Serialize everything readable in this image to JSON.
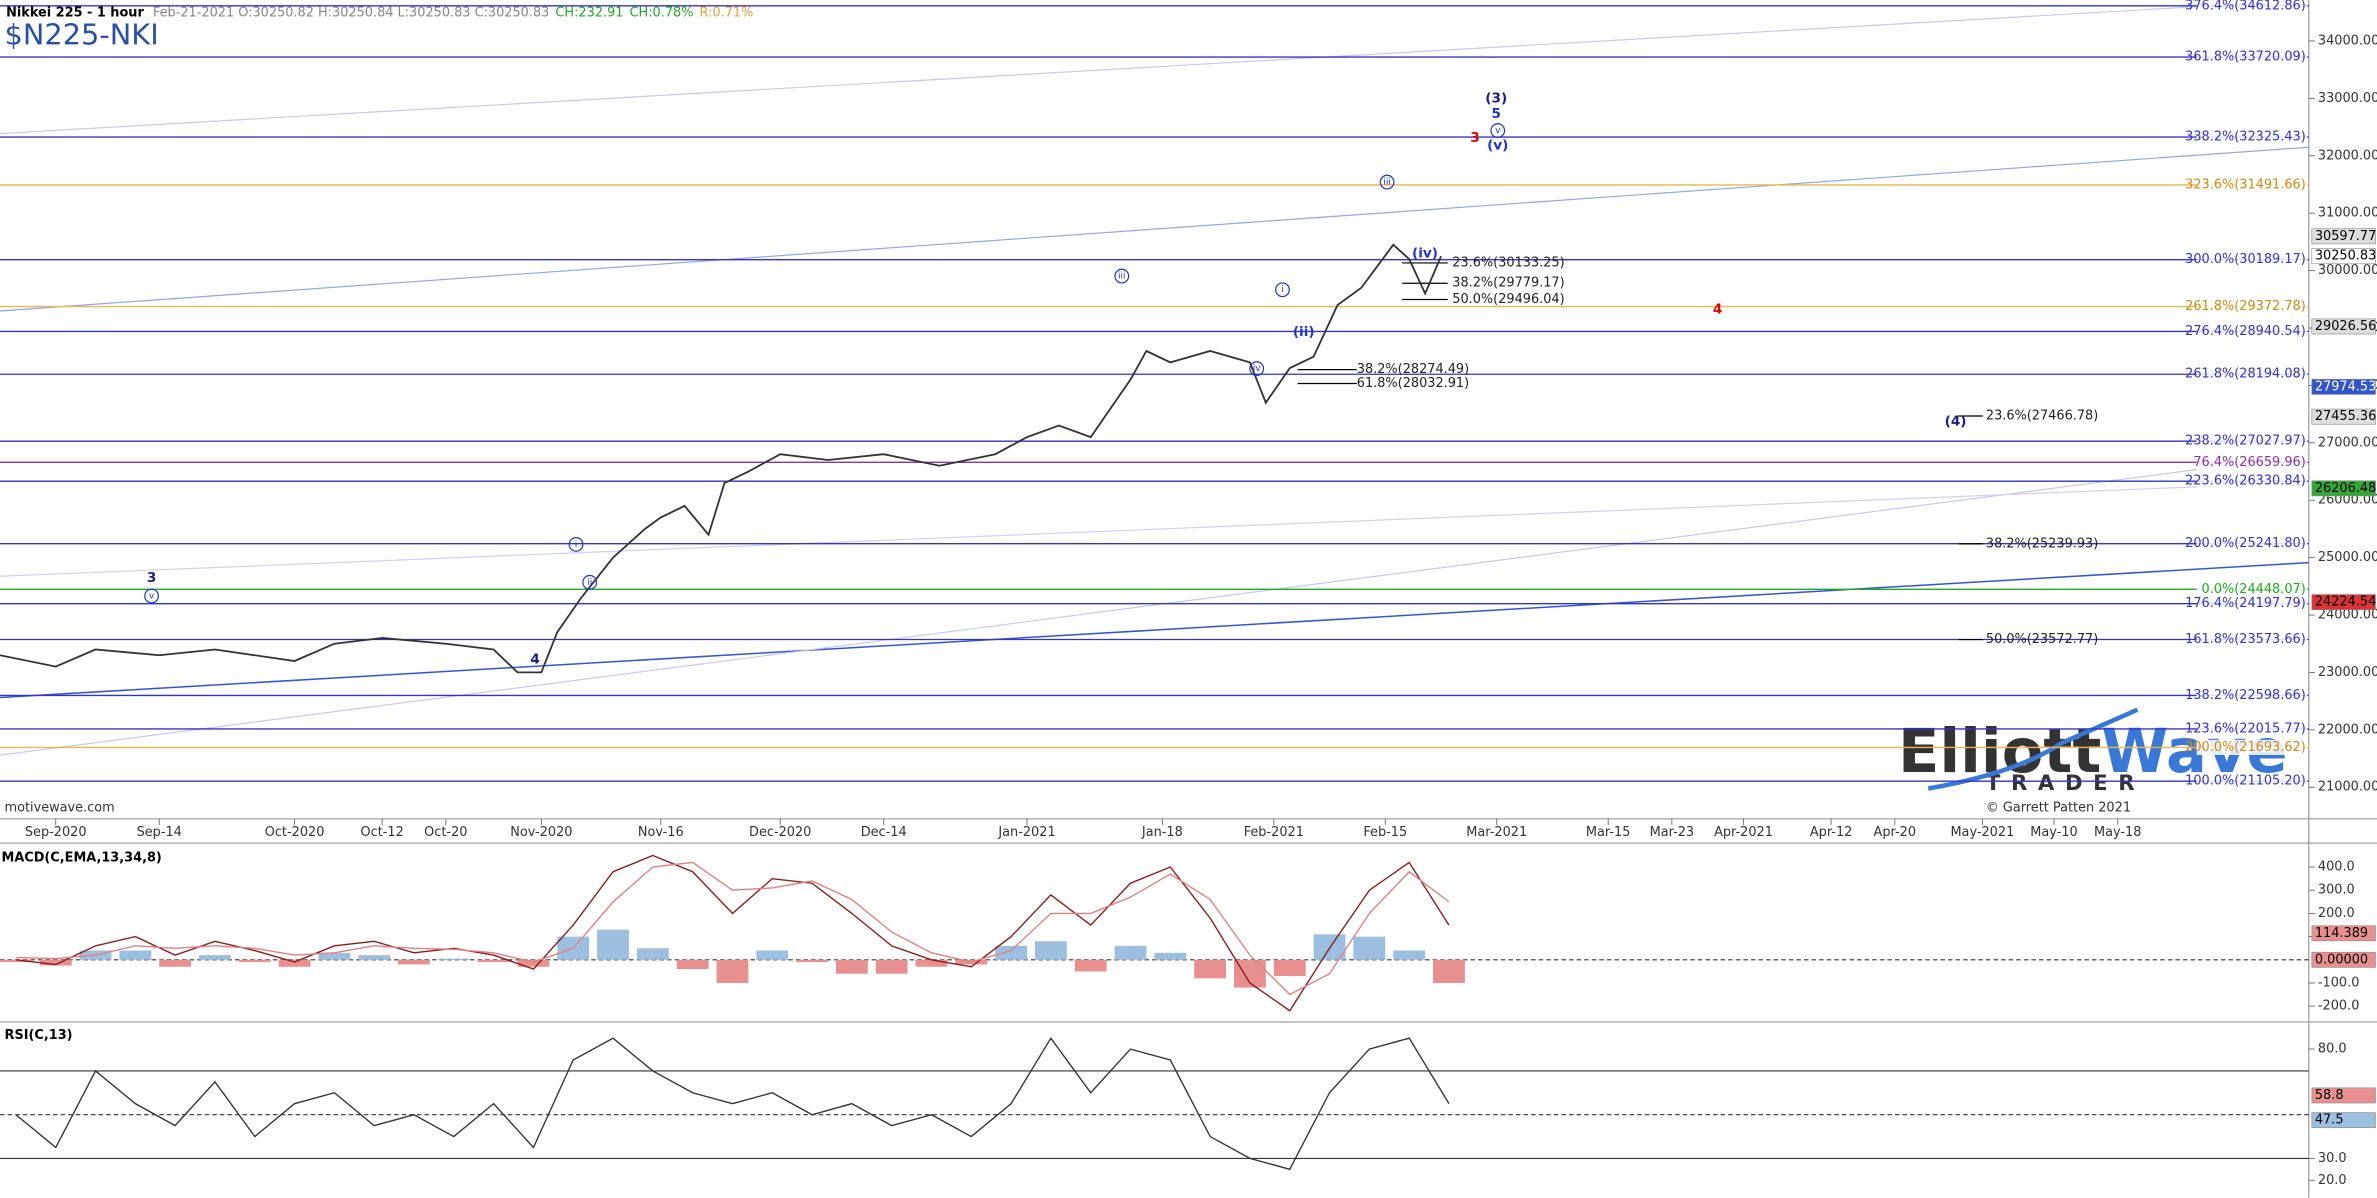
{
  "header": {
    "symbol": "Nikkei 225 - 1 hour",
    "quote": "Feb-21-2021 O:30250.82 H:30250.84 L:30250.83 C:30250.83",
    "change": "CH:232.91",
    "change_pct": "CH:0.78%",
    "range": "R:0.71%",
    "title": "$N225-NKI"
  },
  "watermark": "motivewave.com",
  "copyright": "© Garrett Patten 2021",
  "logo": {
    "text1": "Elliott",
    "text2": "Wave",
    "sub": "TRADER"
  },
  "annotations": [
    {
      "text": "(3)",
      "color": "#1a1a8c"
    },
    {
      "text": "5",
      "color": "#2233cc"
    },
    {
      "text": "v",
      "color": "#2233cc"
    },
    {
      "text": "(v)",
      "color": "#2233cc"
    },
    {
      "text": "3",
      "color": "#dd0000"
    },
    {
      "text": "iii",
      "color": "#2233cc"
    },
    {
      "text": "(iv)",
      "color": "#2233cc"
    },
    {
      "text": "iii",
      "color": "#2233cc"
    },
    {
      "text": "i",
      "color": "#2233cc"
    },
    {
      "text": "(ii)",
      "color": "#2233cc"
    },
    {
      "text": "iv",
      "color": "#2233cc"
    },
    {
      "text": "4",
      "color": "#dd0000"
    },
    {
      "text": "(4)",
      "color": "#1a1a8c"
    },
    {
      "text": "3",
      "color": "#1a1a8c"
    },
    {
      "text": "v",
      "color": "#2233cc"
    },
    {
      "text": "i",
      "color": "#2233cc"
    },
    {
      "text": "ii",
      "color": "#2233cc"
    },
    {
      "text": "4",
      "color": "#1a1a8c"
    }
  ],
  "chart_data": [
    {
      "type": "line",
      "color": "#333333",
      "x": [
        -7,
        0,
        5,
        13,
        20,
        30,
        35,
        41,
        49,
        55,
        58,
        61,
        63,
        66,
        70,
        74,
        76,
        79,
        82,
        84,
        87,
        91,
        97,
        104,
        111,
        118,
        122,
        126,
        130,
        135,
        137,
        140,
        145,
        150,
        152,
        155,
        158,
        161,
        164,
        168,
        170,
        172,
        174
      ],
      "values": [
        23300,
        23100,
        23400,
        23300,
        23400,
        23200,
        23500,
        23600,
        23500,
        23400,
        23000,
        23000,
        23700,
        24300,
        25000,
        25500,
        25700,
        25900,
        25400,
        26300,
        26500,
        26800,
        26700,
        26800,
        26600,
        26800,
        27100,
        27300,
        27100,
        28100,
        28600,
        28400,
        28600,
        28400,
        27700,
        28300,
        28500,
        29400,
        29700,
        30450,
        30200,
        29600,
        30250
      ],
      "xlim": [
        -7,
        283
      ],
      "ylim": [
        20450,
        34710
      ],
      "xticks": [
        {
          "value": 0,
          "label": "Sep-2020"
        },
        {
          "value": 13,
          "label": "Sep-14"
        },
        {
          "value": 30,
          "label": "Oct-2020"
        },
        {
          "value": 41,
          "label": "Oct-12"
        },
        {
          "value": 49,
          "label": "Oct-20"
        },
        {
          "value": 61,
          "label": "Nov-2020"
        },
        {
          "value": 76,
          "label": "Nov-16"
        },
        {
          "value": 91,
          "label": "Dec-2020"
        },
        {
          "value": 104,
          "label": "Dec-14"
        },
        {
          "value": 122,
          "label": "Jan-2021"
        },
        {
          "value": 139,
          "label": "Jan-18"
        },
        {
          "value": 153,
          "label": "Feb-2021"
        },
        {
          "value": 167,
          "label": "Feb-15"
        },
        {
          "value": 181,
          "label": "Mar-2021"
        },
        {
          "value": 195,
          "label": "Mar-15"
        },
        {
          "value": 203,
          "label": "Mar-23"
        },
        {
          "value": 212,
          "label": "Apr-2021"
        },
        {
          "value": 223,
          "label": "Apr-12"
        },
        {
          "value": 231,
          "label": "Apr-20"
        },
        {
          "value": 242,
          "label": "May-2021"
        },
        {
          "value": 251,
          "label": "May-10"
        },
        {
          "value": 259,
          "label": "May-18"
        }
      ],
      "yticks": [
        {
          "value": 34000,
          "label": "34000.00"
        },
        {
          "value": 33000,
          "label": "33000.00"
        },
        {
          "value": 32000,
          "label": "32000.00"
        },
        {
          "value": 31000,
          "label": "31000.00"
        },
        {
          "value": 30000,
          "label": "30000.00"
        },
        {
          "value": 29000,
          "label": "29000.00"
        },
        {
          "value": 28000,
          "label": "28000.00"
        },
        {
          "value": 27000,
          "label": "27000.00"
        },
        {
          "value": 26000,
          "label": "26000.00"
        },
        {
          "value": 25000,
          "label": "25000.00"
        },
        {
          "value": 24000,
          "label": "24000.00"
        },
        {
          "value": 23000,
          "label": "23000.00"
        },
        {
          "value": 22000,
          "label": "22000.00"
        },
        {
          "value": 21000,
          "label": "21000.00"
        }
      ],
      "fib_levels": [
        {
          "value": 34612.86,
          "label": "376.4%(34612.86)",
          "color": "#3333cc"
        },
        {
          "value": 33720.09,
          "label": "361.8%(33720.09)",
          "color": "#3333cc"
        },
        {
          "value": 32325.43,
          "label": "338.2%(32325.43)",
          "color": "#3333cc"
        },
        {
          "value": 31491.66,
          "label": "323.6%(31491.66)",
          "color": "#e8b84a"
        },
        {
          "value": 30189.17,
          "label": "300.0%(30189.17)",
          "color": "#3333cc"
        },
        {
          "value": 29372.78,
          "label": "261.8%(29372.78)",
          "color": "#e8b84a"
        },
        {
          "value": 28940.54,
          "label": "276.4%(28940.54)",
          "color": "#3333cc"
        },
        {
          "value": 28194.08,
          "label": "261.8%(28194.08)",
          "color": "#3333cc"
        },
        {
          "value": 27027.97,
          "label": "238.2%(27027.97)",
          "color": "#3333cc"
        },
        {
          "value": 26659.96,
          "label": "76.4%(26659.96)",
          "color": "#8833aa"
        },
        {
          "value": 26330.84,
          "label": "223.6%(26330.84)",
          "color": "#3333cc"
        },
        {
          "value": 25241.8,
          "label": "200.0%(25241.80)",
          "color": "#3333cc"
        },
        {
          "value": 24448.07,
          "label": "0.0%(24448.07)",
          "color": "#22aa22"
        },
        {
          "value": 24197.79,
          "label": "176.4%(24197.79)",
          "color": "#3333cc"
        },
        {
          "value": 23573.66,
          "label": "161.8%(23573.66)",
          "color": "#3333cc"
        },
        {
          "value": 22598.66,
          "label": "138.2%(22598.66)",
          "color": "#3333cc"
        },
        {
          "value": 22015.77,
          "label": "123.6%(22015.77)",
          "color": "#3333cc"
        },
        {
          "value": 21693.62,
          "label": "200.0%(21693.62)",
          "color": "#e8b84a"
        },
        {
          "value": 21105.2,
          "label": "100.0%(21105.20)",
          "color": "#3333cc"
        }
      ],
      "retracements": [
        {
          "value": 30133.25,
          "label": "23.6%(30133.25)"
        },
        {
          "value": 29779.17,
          "label": "38.2%(29779.17)"
        },
        {
          "value": 29496.04,
          "label": "50.0%(29496.04)"
        },
        {
          "value": 28274.49,
          "label": "38.2%(28274.49)"
        },
        {
          "value": 28032.91,
          "label": "61.8%(28032.91)"
        },
        {
          "value": 27466.78,
          "label": "23.6%(27466.78)"
        },
        {
          "value": 25239.93,
          "label": "38.2%(25239.93)"
        },
        {
          "value": 23572.77,
          "label": "50.0%(23572.77)"
        }
      ],
      "price_tags": [
        {
          "value": 30597.77,
          "color": "#dddddd",
          "text_color": "#000000"
        },
        {
          "value": 30250.83,
          "color": "#ffffff",
          "text_color": "#000000"
        },
        {
          "value": 29026.56,
          "color": "#dddddd",
          "text_color": "#000000"
        },
        {
          "value": 27974.53,
          "color": "#3355cc",
          "text_color": "#ffffff"
        },
        {
          "value": 27455.36,
          "color": "#dddddd",
          "text_color": "#000000"
        },
        {
          "value": 26206.48,
          "color": "#33aa33",
          "text_color": "#000000"
        },
        {
          "value": 24224.54,
          "color": "#dd3333",
          "text_color": "#000000"
        }
      ]
    },
    {
      "type": "line",
      "title": "MACD(C,EMA,13,34,8)",
      "xlim": [
        -7,
        283
      ],
      "ylim": [
        -255,
        497
      ],
      "yticks": [
        {
          "value": 400,
          "label": "400.0"
        },
        {
          "value": 300,
          "label": "300.0"
        },
        {
          "value": 200,
          "label": "200.0"
        },
        {
          "value": 100,
          "label": "100.0"
        },
        {
          "value": -100,
          "label": "-100.0"
        },
        {
          "value": -200,
          "label": "-200.0"
        }
      ],
      "hlines": [
        0
      ],
      "x": [
        -5,
        0,
        5,
        10,
        15,
        20,
        25,
        30,
        35,
        40,
        45,
        50,
        55,
        60,
        65,
        70,
        75,
        80,
        85,
        90,
        95,
        100,
        105,
        110,
        115,
        120,
        125,
        130,
        135,
        140,
        145,
        150,
        155,
        160,
        165,
        170,
        175
      ],
      "series": [
        {
          "color": "#8b1a1a",
          "values": [
            0,
            -20,
            60,
            100,
            20,
            80,
            40,
            -10,
            60,
            80,
            30,
            50,
            20,
            -40,
            150,
            380,
            450,
            380,
            200,
            350,
            330,
            200,
            60,
            0,
            -30,
            100,
            280,
            150,
            330,
            400,
            180,
            -100,
            -220,
            50,
            300,
            420,
            150
          ]
        },
        {
          "color": "#e08080",
          "values": [
            10,
            5,
            20,
            60,
            50,
            60,
            50,
            20,
            30,
            60,
            50,
            45,
            30,
            -10,
            50,
            250,
            400,
            420,
            300,
            310,
            340,
            260,
            120,
            30,
            -10,
            40,
            200,
            200,
            270,
            370,
            260,
            20,
            -150,
            -60,
            200,
            380,
            250
          ]
        }
      ],
      "histogram": {
        "up_color": "#9cbfe0",
        "down_color": "#e89090",
        "values": [
          -10,
          -25,
          40,
          40,
          -30,
          20,
          -10,
          -30,
          30,
          20,
          -20,
          5,
          -10,
          -30,
          100,
          130,
          50,
          -40,
          -100,
          40,
          -10,
          -60,
          -60,
          -30,
          -20,
          60,
          80,
          -50,
          60,
          30,
          -80,
          -120,
          -70,
          110,
          100,
          40,
          -100
        ]
      },
      "tags": [
        {
          "value": 114.389,
          "color": "#e89090"
        },
        {
          "value": 0,
          "label": "0.00000",
          "color": "#e89090"
        }
      ]
    },
    {
      "type": "line",
      "title": "RSI(C,13)",
      "xlim": [
        -7,
        283
      ],
      "ylim": [
        12,
        91
      ],
      "yticks": [
        {
          "value": 80,
          "label": "80.0"
        },
        {
          "value": 30,
          "label": "30.0"
        },
        {
          "value": 20,
          "label": "20.0"
        }
      ],
      "hlines": [
        70,
        50,
        30
      ],
      "x": [
        -5,
        0,
        5,
        10,
        15,
        20,
        25,
        30,
        35,
        40,
        45,
        50,
        55,
        60,
        65,
        70,
        75,
        80,
        85,
        90,
        95,
        100,
        105,
        110,
        115,
        120,
        125,
        130,
        135,
        140,
        145,
        150,
        155,
        160,
        165,
        170,
        175
      ],
      "series": [
        {
          "color": "#333333",
          "values": [
            50,
            35,
            70,
            55,
            45,
            65,
            40,
            55,
            60,
            45,
            50,
            40,
            55,
            35,
            75,
            85,
            70,
            60,
            55,
            60,
            50,
            55,
            45,
            50,
            40,
            55,
            85,
            60,
            80,
            75,
            40,
            30,
            25,
            60,
            80,
            85,
            55
          ]
        }
      ],
      "tags": [
        {
          "value": 58.8,
          "color": "#e89090"
        },
        {
          "value": 47.5,
          "color": "#9cbfe0"
        }
      ]
    }
  ]
}
